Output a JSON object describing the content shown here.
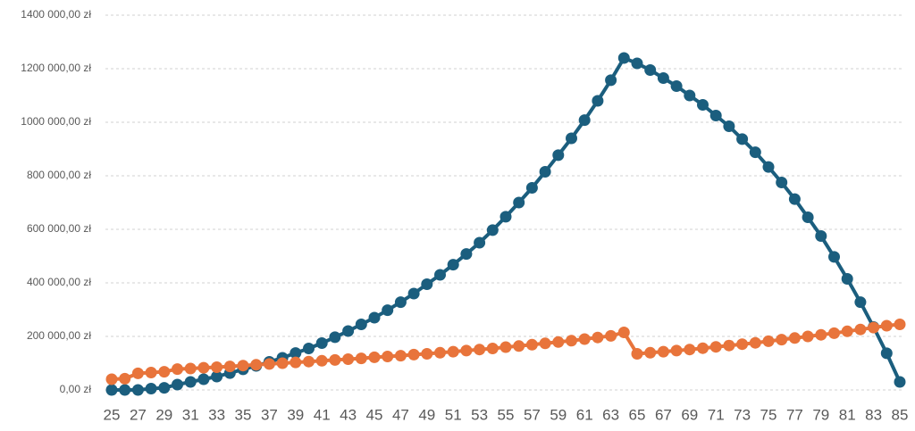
{
  "chart_data": {
    "type": "line",
    "x": [
      25,
      26,
      27,
      28,
      29,
      30,
      31,
      32,
      33,
      34,
      35,
      36,
      37,
      38,
      39,
      40,
      41,
      42,
      43,
      44,
      45,
      46,
      47,
      48,
      49,
      50,
      51,
      52,
      53,
      54,
      55,
      56,
      57,
      58,
      59,
      60,
      61,
      62,
      63,
      64,
      65,
      66,
      67,
      68,
      69,
      70,
      71,
      72,
      73,
      74,
      75,
      76,
      77,
      78,
      79,
      80,
      81,
      82,
      83,
      84,
      85
    ],
    "xlim": [
      25,
      85
    ],
    "xticks": [
      25,
      27,
      29,
      31,
      33,
      35,
      37,
      39,
      41,
      43,
      45,
      47,
      49,
      51,
      53,
      55,
      57,
      59,
      61,
      63,
      65,
      67,
      69,
      71,
      73,
      75,
      77,
      79,
      81,
      83,
      85
    ],
    "ylim": [
      0,
      1400000
    ],
    "yticks": [
      {
        "value": 0,
        "label": "0,00 zł"
      },
      {
        "value": 200000,
        "label": "200 000,00 zł"
      },
      {
        "value": 400000,
        "label": "400 000,00 zł"
      },
      {
        "value": 600000,
        "label": "600 000,00 zł"
      },
      {
        "value": 800000,
        "label": "800 000,00 zł"
      },
      {
        "value": 1000000,
        "label": "1000 000,00 zł"
      },
      {
        "value": 1200000,
        "label": "1200 000,00 zł"
      },
      {
        "value": 1400000,
        "label": "1400 000,00 zł"
      }
    ],
    "grid": true,
    "series": [
      {
        "color": "#1b5e7e",
        "values": [
          0,
          0,
          0,
          5000,
          8000,
          20000,
          30000,
          40000,
          50000,
          63000,
          77000,
          90000,
          105000,
          120000,
          138000,
          155000,
          175000,
          197000,
          220000,
          245000,
          270000,
          298000,
          328000,
          360000,
          395000,
          430000,
          468000,
          508000,
          550000,
          597000,
          647000,
          700000,
          755000,
          815000,
          877000,
          940000,
          1008000,
          1080000,
          1157000,
          1240000,
          1220000,
          1195000,
          1165000,
          1135000,
          1100000,
          1065000,
          1025000,
          985000,
          937000,
          888000,
          833000,
          775000,
          713000,
          645000,
          575000,
          497000,
          415000,
          328000,
          235000,
          137000,
          30000
        ]
      },
      {
        "color": "#e8743b",
        "values": [
          40000,
          42000,
          62000,
          65000,
          68000,
          78000,
          80000,
          83000,
          85000,
          88000,
          91000,
          94000,
          97000,
          100000,
          103000,
          106000,
          109000,
          112000,
          115000,
          118000,
          122000,
          125000,
          128000,
          132000,
          135000,
          139000,
          143000,
          147000,
          151000,
          155000,
          160000,
          164000,
          169000,
          174000,
          179000,
          184000,
          190000,
          196000,
          202000,
          215000,
          135000,
          139000,
          143000,
          147000,
          151000,
          156000,
          161000,
          166000,
          171000,
          176000,
          182000,
          188000,
          194000,
          200000,
          206000,
          212000,
          219000,
          226000,
          233000,
          240000,
          245000
        ]
      }
    ]
  }
}
